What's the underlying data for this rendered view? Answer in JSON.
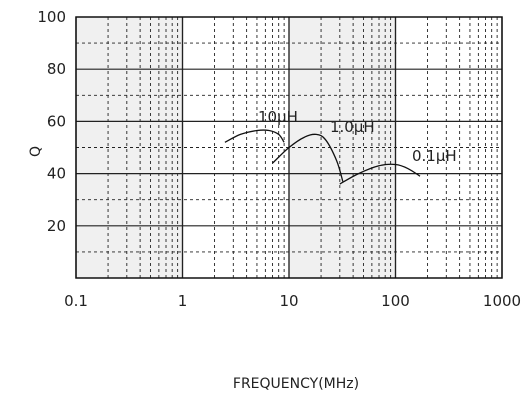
{
  "chart_data": {
    "type": "line",
    "xlabel": "FREQUENCY(MHz)",
    "ylabel": "Q",
    "xscale": "log",
    "xlim": [
      0.1,
      1000
    ],
    "ylim": [
      0,
      100
    ],
    "x_ticks": [
      "0.1",
      "1",
      "10",
      "100",
      "1000"
    ],
    "y_ticks": [
      "20",
      "40",
      "60",
      "80",
      "100"
    ],
    "grid": true,
    "shaded_decades": [
      [
        0.1,
        1
      ],
      [
        10,
        100
      ]
    ],
    "colors": {
      "line": "#111111",
      "shade": "#f0f0f0",
      "grid": "#222222"
    },
    "series": [
      {
        "name": "10μH",
        "x": [
          2.5,
          3.5,
          5,
          6.5,
          8,
          9
        ],
        "y": [
          52,
          55,
          56.5,
          56.5,
          55,
          52
        ]
      },
      {
        "name": "1.0μH",
        "x": [
          7,
          10,
          14,
          18,
          22,
          28,
          32
        ],
        "y": [
          44,
          50,
          54,
          55,
          53,
          45,
          37
        ]
      },
      {
        "name": "0.1μH",
        "x": [
          30,
          45,
          70,
          100,
          130,
          170
        ],
        "y": [
          36,
          40,
          43,
          43.5,
          42,
          39
        ]
      }
    ]
  }
}
